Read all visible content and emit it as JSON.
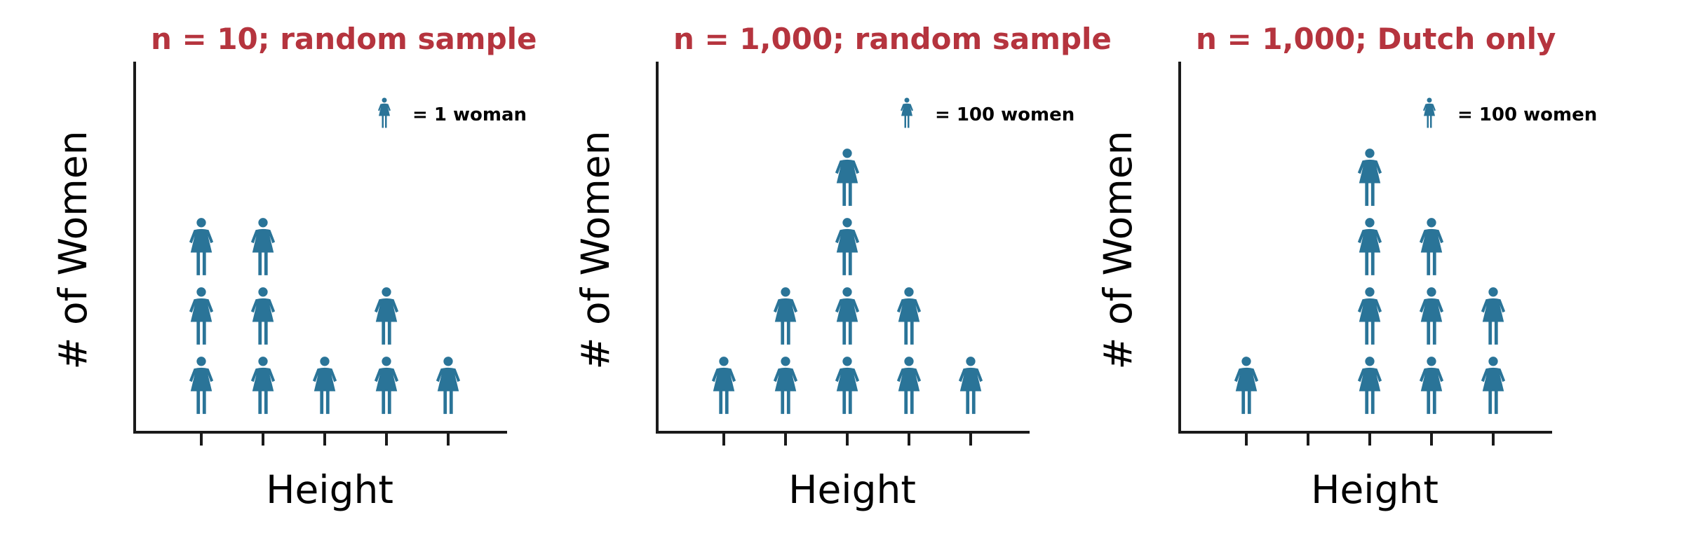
{
  "colors": {
    "title": "#B5343E",
    "icon": "#2A7498",
    "axis": "#1a1a1a",
    "text": "#000000"
  },
  "icon_name": "woman-icon",
  "chart_data": [
    {
      "type": "pictograph",
      "title": "n = 10; random sample",
      "xlabel": "Height",
      "ylabel": "# of Women",
      "legend": {
        "text": "= 1 woman",
        "unit_value": 1,
        "placement": "top-right"
      },
      "categories": [
        "",
        "",
        "",
        "",
        ""
      ],
      "values": [
        3,
        3,
        1,
        2,
        1
      ]
    },
    {
      "type": "pictograph",
      "title": "n = 1,000; random sample",
      "xlabel": "Height",
      "ylabel": "# of Women",
      "legend": {
        "text": "= 100 women",
        "unit_value": 100,
        "placement": "top-right"
      },
      "categories": [
        "",
        "",
        "",
        "",
        ""
      ],
      "values": [
        1,
        2,
        4,
        2,
        1
      ]
    },
    {
      "type": "pictograph",
      "title": "n = 1,000; Dutch only",
      "xlabel": "Height",
      "ylabel": "# of Women",
      "legend": {
        "text": "= 100 women",
        "unit_value": 100,
        "placement": "top-right"
      },
      "categories": [
        "",
        "",
        "",
        "",
        ""
      ],
      "values": [
        1,
        0,
        4,
        3,
        2
      ]
    }
  ]
}
